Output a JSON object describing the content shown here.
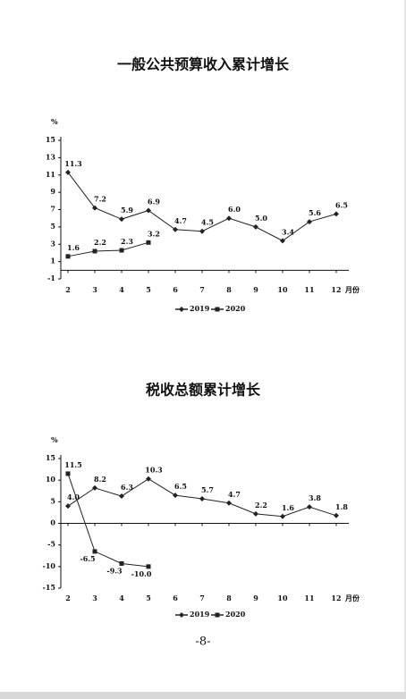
{
  "chart_data": [
    {
      "type": "line",
      "title": "一般公共预算收入累计增长",
      "y_label": "%",
      "x_label": "月份",
      "categories": [
        "2",
        "3",
        "4",
        "5",
        "6",
        "7",
        "8",
        "9",
        "10",
        "11",
        "12"
      ],
      "ylim": [
        -1,
        15
      ],
      "yticks": [
        -1,
        1,
        3,
        5,
        7,
        9,
        11,
        13,
        15
      ],
      "series": [
        {
          "name": "2019",
          "color": "#222222",
          "marker": "diamond",
          "values": [
            11.3,
            7.2,
            5.9,
            6.9,
            4.7,
            4.5,
            6.0,
            5.0,
            3.4,
            5.6,
            6.5
          ],
          "value_labels": [
            "11.3",
            "7.2",
            "5.9",
            "6.9",
            "4.7",
            "4.5",
            "6.0",
            "5.0",
            "3.4",
            "5.6",
            "6.5"
          ]
        },
        {
          "name": "2020",
          "color": "#222222",
          "marker": "square",
          "values": [
            1.6,
            2.2,
            2.3,
            3.2,
            null,
            null,
            null,
            null,
            null,
            null,
            null
          ],
          "value_labels": [
            "1.6",
            "2.2",
            "2.3",
            "3.2",
            null,
            null,
            null,
            null,
            null,
            null,
            null
          ]
        }
      ]
    },
    {
      "type": "line",
      "title": "税收总额累计增长",
      "y_label": "%",
      "x_label": "月份",
      "categories": [
        "2",
        "3",
        "4",
        "5",
        "6",
        "7",
        "8",
        "9",
        "10",
        "11",
        "12"
      ],
      "ylim": [
        -15,
        15
      ],
      "yticks": [
        -15,
        -10,
        -5,
        0,
        5,
        10,
        15
      ],
      "series": [
        {
          "name": "2019",
          "color": "#222222",
          "marker": "diamond",
          "values": [
            4.0,
            8.2,
            6.3,
            10.3,
            6.5,
            5.7,
            4.7,
            2.2,
            1.6,
            3.8,
            1.8
          ],
          "value_labels": [
            "4.0",
            "8.2",
            "6.3",
            "10.3",
            "6.5",
            "5.7",
            "4.7",
            "2.2",
            "1.6",
            "3.8",
            "1.8"
          ]
        },
        {
          "name": "2020",
          "color": "#222222",
          "marker": "square",
          "values": [
            11.5,
            -6.5,
            -9.3,
            -10.0,
            null,
            null,
            null,
            null,
            null,
            null,
            null
          ],
          "value_labels": [
            "11.5",
            "-6.5",
            "-9.3",
            "-10.0",
            null,
            null,
            null,
            null,
            null,
            null,
            null
          ]
        }
      ]
    }
  ],
  "page_number": "-8-"
}
